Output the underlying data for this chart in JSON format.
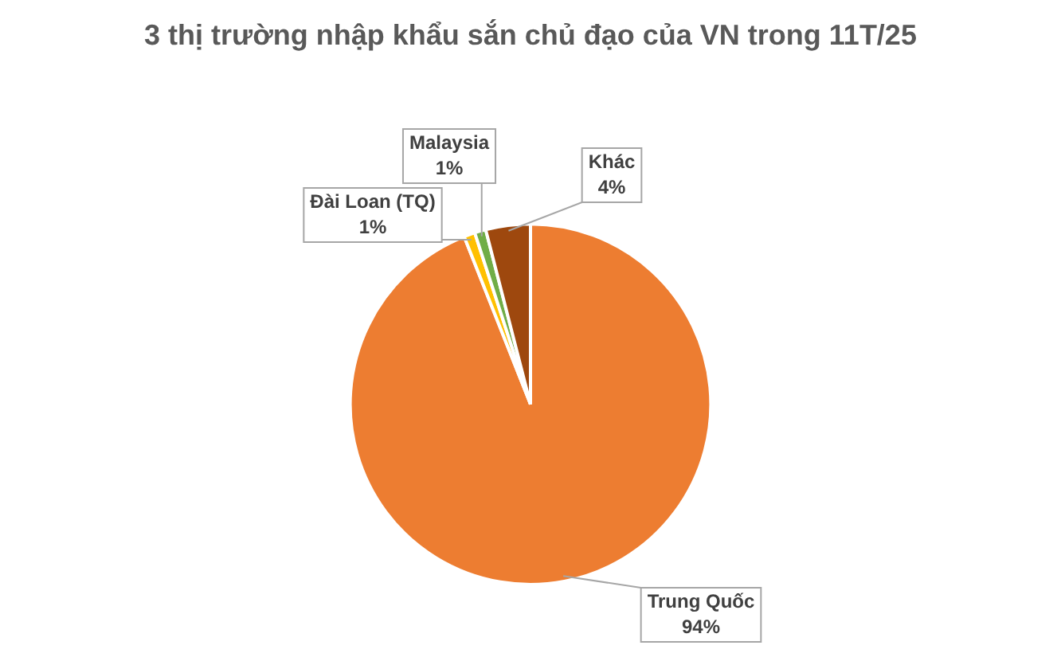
{
  "chart_data": {
    "type": "pie",
    "title": "3 thị trường nhập khẩu sắn chủ đạo của VN trong 11T/25",
    "categories": [
      "Trung Quốc",
      "Đài Loan (TQ)",
      "Malaysia",
      "Khác"
    ],
    "values": [
      94,
      1,
      1,
      4
    ],
    "value_labels": [
      "94%",
      "1%",
      "1%",
      "4%"
    ],
    "colors": [
      "#ed7d31",
      "#ffc000",
      "#70ad47",
      "#9e480e"
    ],
    "legend": false
  }
}
